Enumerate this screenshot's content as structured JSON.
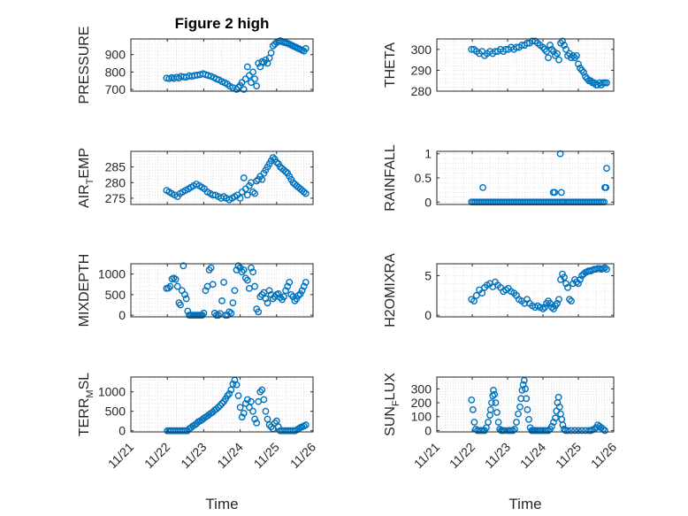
{
  "figure": {
    "title": "Figure 2 high"
  },
  "marker_color": "#0072BD",
  "axis_color": "#262626",
  "grid_color": "#d6d6d6",
  "chart_data": [
    {
      "id": "pressure",
      "type": "scatter",
      "title": "Figure 2 high",
      "ylabel": {
        "main": "PRESSURE"
      },
      "xlabel": "",
      "ylim": [
        690,
        990
      ],
      "yticks": [
        700,
        800,
        900
      ],
      "yticklabels": [
        "700",
        "800",
        "900"
      ],
      "xlim": [
        0,
        5
      ],
      "grid": true,
      "x": [
        0.98,
        1.05,
        1.12,
        1.18,
        1.25,
        1.32,
        1.38,
        1.45,
        1.52,
        1.6,
        1.68,
        1.75,
        1.82,
        1.9,
        1.98,
        2.05,
        2.12,
        2.2,
        2.28,
        2.35,
        2.42,
        2.5,
        2.58,
        2.65,
        2.72,
        2.8,
        2.9,
        2.95,
        3.0,
        3.05,
        3.1,
        3.15,
        3.2,
        3.25,
        3.3,
        3.35,
        3.4,
        3.45,
        3.5,
        3.55,
        3.6,
        3.65,
        3.7,
        3.75,
        3.8,
        3.85,
        3.9,
        3.95,
        4.0,
        4.05,
        4.1,
        4.15,
        4.2,
        4.25,
        4.3,
        4.35,
        4.4,
        4.45,
        4.5,
        4.55,
        4.6,
        4.65,
        4.7,
        4.75,
        4.8
      ],
      "y": [
        765,
        762,
        768,
        763,
        770,
        765,
        775,
        772,
        770,
        778,
        775,
        780,
        782,
        785,
        790,
        785,
        780,
        775,
        768,
        760,
        755,
        745,
        738,
        730,
        718,
        710,
        700,
        712,
        722,
        740,
        700,
        760,
        830,
        780,
        740,
        800,
        760,
        720,
        850,
        830,
        860,
        855,
        870,
        850,
        880,
        910,
        950,
        960,
        970,
        975,
        980,
        975,
        970,
        968,
        965,
        960,
        955,
        950,
        945,
        940,
        935,
        930,
        925,
        920,
        935
      ]
    },
    {
      "id": "theta",
      "type": "scatter",
      "title": "",
      "ylabel": {
        "main": "THETA"
      },
      "xlabel": "",
      "ylim": [
        280,
        305
      ],
      "yticks": [
        280,
        290,
        300
      ],
      "yticklabels": [
        "280",
        "290",
        "300"
      ],
      "xlim": [
        0,
        5
      ],
      "grid": true,
      "x": [
        0.98,
        1.05,
        1.12,
        1.2,
        1.28,
        1.35,
        1.42,
        1.5,
        1.58,
        1.65,
        1.72,
        1.8,
        1.88,
        1.95,
        2.02,
        2.1,
        2.18,
        2.25,
        2.32,
        2.4,
        2.48,
        2.55,
        2.62,
        2.7,
        2.78,
        2.85,
        2.92,
        3.0,
        3.05,
        3.1,
        3.15,
        3.2,
        3.25,
        3.3,
        3.35,
        3.4,
        3.45,
        3.5,
        3.55,
        3.6,
        3.65,
        3.7,
        3.75,
        3.8,
        3.85,
        3.9,
        3.95,
        4.0,
        4.05,
        4.1,
        4.15,
        4.2,
        4.25,
        4.3,
        4.35,
        4.4,
        4.45,
        4.5,
        4.55,
        4.6,
        4.65,
        4.7,
        4.75,
        4.8
      ],
      "y": [
        300,
        300,
        299,
        298,
        299,
        297,
        298,
        299,
        298,
        299,
        299,
        300,
        299,
        300,
        300,
        301,
        300,
        301,
        301,
        302,
        302,
        303,
        303,
        304,
        304,
        303,
        302,
        301,
        300,
        299,
        296,
        302,
        300,
        299,
        297,
        298,
        295,
        303,
        304,
        302,
        300,
        297,
        298,
        296,
        297,
        296,
        297,
        293,
        291,
        290,
        289,
        287,
        286,
        285,
        285,
        284,
        284,
        283,
        283,
        284,
        283,
        284,
        284,
        284
      ]
    },
    {
      "id": "airtemp",
      "type": "scatter",
      "title": "",
      "ylabel": {
        "main": "AIR",
        "sub": "T",
        "tail": "EMP"
      },
      "xlabel": "",
      "ylim": [
        273,
        290
      ],
      "yticks": [
        275,
        280,
        285
      ],
      "yticklabels": [
        "275",
        "280",
        "285"
      ],
      "xlim": [
        0,
        5
      ],
      "grid": true,
      "x": [
        0.98,
        1.05,
        1.12,
        1.2,
        1.28,
        1.35,
        1.42,
        1.5,
        1.58,
        1.65,
        1.72,
        1.8,
        1.88,
        1.95,
        2.02,
        2.1,
        2.18,
        2.25,
        2.32,
        2.4,
        2.48,
        2.55,
        2.62,
        2.7,
        2.78,
        2.85,
        2.92,
        3.0,
        3.05,
        3.1,
        3.15,
        3.2,
        3.25,
        3.3,
        3.35,
        3.4,
        3.45,
        3.5,
        3.55,
        3.6,
        3.65,
        3.7,
        3.75,
        3.8,
        3.85,
        3.9,
        3.95,
        4.0,
        4.05,
        4.1,
        4.15,
        4.2,
        4.25,
        4.3,
        4.35,
        4.4,
        4.45,
        4.5,
        4.55,
        4.6,
        4.65,
        4.7,
        4.75,
        4.8
      ],
      "y": [
        277.5,
        277,
        276.5,
        276,
        275.5,
        276.5,
        277,
        277.5,
        278,
        278.5,
        279,
        279.5,
        279,
        278.5,
        278,
        277,
        276.5,
        276,
        276,
        275.5,
        275,
        275.5,
        275,
        274.5,
        275,
        275.5,
        276,
        275,
        277,
        281.5,
        278,
        276,
        279,
        280,
        277,
        276.5,
        280.5,
        281,
        282,
        281,
        283,
        284,
        285,
        286,
        287,
        288,
        287.5,
        286.5,
        286,
        285,
        284.5,
        284,
        283.5,
        283,
        282,
        281,
        280,
        279.5,
        279,
        278.5,
        278,
        277.5,
        277,
        276.5
      ]
    },
    {
      "id": "rainfall",
      "type": "scatter",
      "title": "",
      "ylabel": {
        "main": "RAINFALL"
      },
      "xlabel": "",
      "ylim": [
        -0.05,
        1.05
      ],
      "yticks": [
        0,
        0.5,
        1
      ],
      "yticklabels": [
        "0",
        "0.5",
        "1"
      ],
      "xlim": [
        0,
        5
      ],
      "grid": true,
      "x": [
        0.98,
        1.03,
        1.08,
        1.13,
        1.18,
        1.23,
        1.28,
        1.33,
        1.38,
        1.43,
        1.48,
        1.53,
        1.58,
        1.63,
        1.68,
        1.73,
        1.78,
        1.83,
        1.88,
        1.93,
        1.98,
        2.03,
        2.08,
        2.13,
        2.18,
        2.23,
        2.28,
        2.33,
        2.38,
        2.43,
        2.48,
        2.53,
        2.58,
        2.63,
        2.68,
        2.73,
        2.78,
        2.83,
        2.88,
        2.93,
        2.98,
        3.03,
        3.08,
        3.13,
        3.18,
        3.23,
        3.28,
        3.33,
        3.38,
        3.43,
        3.48,
        3.53,
        3.58,
        3.63,
        3.68,
        3.73,
        3.78,
        3.83,
        3.88,
        3.93,
        3.98,
        4.03,
        4.08,
        4.13,
        4.18,
        4.23,
        4.28,
        4.33,
        4.38,
        4.43,
        4.48,
        4.53,
        4.58,
        4.63,
        4.68,
        4.73,
        1.3,
        3.29,
        3.33,
        3.49,
        3.52,
        3.54,
        4.75,
        4.78,
        4.8
      ],
      "y": [
        0,
        0,
        0,
        0,
        0,
        0,
        0,
        0,
        0,
        0,
        0,
        0,
        0,
        0,
        0,
        0,
        0,
        0,
        0,
        0,
        0,
        0,
        0,
        0,
        0,
        0,
        0,
        0,
        0,
        0,
        0,
        0,
        0,
        0,
        0,
        0,
        0,
        0,
        0,
        0,
        0,
        0,
        0,
        0,
        0,
        0,
        0,
        0,
        0,
        0,
        0,
        0,
        0,
        0,
        0,
        0,
        0,
        0,
        0,
        0,
        0,
        0,
        0,
        0,
        0,
        0,
        0,
        0,
        0,
        0,
        0,
        0,
        0,
        0,
        0,
        0,
        0.3,
        0.2,
        0.2,
        1.0,
        0.2,
        0,
        0.3,
        0.3,
        0.7
      ]
    },
    {
      "id": "mixdepth",
      "type": "scatter",
      "title": "",
      "ylabel": {
        "main": "MIXDEPTH"
      },
      "xlabel": "",
      "ylim": [
        -40,
        1250
      ],
      "yticks": [
        0,
        500,
        1000
      ],
      "yticklabels": [
        "0",
        "500",
        "1000"
      ],
      "xlim": [
        0,
        5
      ],
      "grid": true,
      "x": [
        0.98,
        1.03,
        1.08,
        1.13,
        1.18,
        1.23,
        1.28,
        1.32,
        1.36,
        1.4,
        1.44,
        1.48,
        1.52,
        1.56,
        1.6,
        1.64,
        1.68,
        1.72,
        1.76,
        1.8,
        1.84,
        1.88,
        1.92,
        1.96,
        2.0,
        2.05,
        2.1,
        2.15,
        2.2,
        2.25,
        2.3,
        2.35,
        2.4,
        2.45,
        2.5,
        2.55,
        2.6,
        2.65,
        2.7,
        2.75,
        2.8,
        2.85,
        2.9,
        2.95,
        3.0,
        3.05,
        3.1,
        3.15,
        3.2,
        3.25,
        3.3,
        3.35,
        3.4,
        3.45,
        3.5,
        3.55,
        3.6,
        3.65,
        3.7,
        3.75,
        3.8,
        3.85,
        3.9,
        3.95,
        4.0,
        4.05,
        4.1,
        4.15,
        4.2,
        4.25,
        4.3,
        4.35,
        4.4,
        4.45,
        4.5,
        4.55,
        4.6,
        4.65,
        4.7,
        4.75,
        4.8
      ],
      "y": [
        650,
        660,
        700,
        880,
        900,
        870,
        700,
        300,
        250,
        600,
        1200,
        500,
        400,
        100,
        0,
        0,
        0,
        0,
        0,
        0,
        0,
        0,
        0,
        0,
        50,
        600,
        700,
        1100,
        1150,
        750,
        50,
        0,
        0,
        40,
        350,
        800,
        0,
        0,
        80,
        50,
        300,
        600,
        1100,
        1200,
        1150,
        1050,
        1100,
        900,
        850,
        650,
        1150,
        1050,
        700,
        150,
        80,
        450,
        500,
        550,
        400,
        300,
        600,
        500,
        400,
        450,
        500,
        520,
        430,
        380,
        450,
        600,
        700,
        800,
        500,
        450,
        350,
        400,
        480,
        520,
        600,
        700,
        800
      ]
    },
    {
      "id": "h2omixra",
      "type": "scatter",
      "title": "",
      "ylabel": {
        "main": "H2OMIXRA"
      },
      "xlabel": "",
      "ylim": [
        -0.2,
        6.5
      ],
      "yticks": [
        0,
        5
      ],
      "yticklabels": [
        "0",
        "5"
      ],
      "xlim": [
        0,
        5
      ],
      "grid": true,
      "x": [
        0.98,
        1.05,
        1.12,
        1.2,
        1.28,
        1.35,
        1.42,
        1.5,
        1.58,
        1.65,
        1.72,
        1.8,
        1.88,
        1.95,
        2.02,
        2.1,
        2.18,
        2.25,
        2.32,
        2.4,
        2.48,
        2.55,
        2.62,
        2.7,
        2.78,
        2.85,
        2.92,
        3.0,
        3.05,
        3.1,
        3.15,
        3.2,
        3.25,
        3.3,
        3.35,
        3.4,
        3.45,
        3.5,
        3.55,
        3.6,
        3.65,
        3.7,
        3.75,
        3.8,
        3.85,
        3.9,
        3.95,
        4.0,
        4.05,
        4.1,
        4.15,
        4.2,
        4.25,
        4.3,
        4.35,
        4.4,
        4.45,
        4.5,
        4.55,
        4.6,
        4.65,
        4.7,
        4.75,
        4.8
      ],
      "y": [
        2.0,
        1.8,
        2.5,
        3.2,
        2.8,
        3.5,
        3.8,
        4.0,
        3.6,
        4.2,
        3.8,
        3.5,
        3.0,
        3.2,
        3.4,
        3.0,
        2.8,
        2.5,
        2.0,
        1.8,
        1.5,
        2.0,
        1.5,
        1.2,
        1.0,
        1.2,
        1.0,
        0.8,
        1.0,
        1.5,
        1.8,
        1.5,
        1.0,
        0.8,
        1.2,
        1.5,
        2.0,
        4.5,
        5.2,
        4.8,
        4.0,
        3.5,
        2.0,
        1.8,
        4.0,
        4.5,
        4.2,
        4.0,
        4.5,
        5.0,
        5.2,
        5.4,
        5.5,
        5.6,
        5.6,
        5.7,
        5.8,
        5.8,
        5.9,
        5.9,
        5.8,
        5.9,
        6.0,
        5.8
      ]
    },
    {
      "id": "terrmsl",
      "type": "scatter",
      "title": "",
      "ylabel": {
        "main": "TERR",
        "sub": "M",
        "tail": "SL"
      },
      "xlabel": "Time",
      "ylim": [
        -30,
        1380
      ],
      "yticks": [
        0,
        500,
        1000
      ],
      "yticklabels": [
        "0",
        "500",
        "1000"
      ],
      "xlim": [
        0,
        5
      ],
      "grid": true,
      "xticklabels": [
        "11/21",
        "11/22",
        "11/23",
        "11/24",
        "11/25",
        "11/26"
      ],
      "x": [
        1.0,
        1.05,
        1.1,
        1.15,
        1.2,
        1.25,
        1.3,
        1.35,
        1.4,
        1.45,
        1.5,
        1.55,
        1.6,
        1.65,
        1.7,
        1.75,
        1.8,
        1.85,
        1.9,
        1.95,
        2.0,
        2.05,
        2.1,
        2.15,
        2.2,
        2.25,
        2.3,
        2.35,
        2.4,
        2.45,
        2.5,
        2.55,
        2.6,
        2.65,
        2.7,
        2.75,
        2.8,
        2.85,
        2.9,
        2.95,
        3.0,
        3.05,
        3.1,
        3.15,
        3.2,
        3.25,
        3.3,
        3.35,
        3.4,
        3.45,
        3.5,
        3.55,
        3.6,
        3.65,
        3.7,
        3.75,
        3.8,
        3.85,
        3.9,
        3.95,
        4.0,
        4.05,
        4.1,
        4.15,
        4.2,
        4.25,
        4.3,
        4.35,
        4.4,
        4.45,
        4.5,
        4.55,
        4.6,
        4.65,
        4.7,
        4.75,
        4.8
      ],
      "y": [
        0,
        0,
        0,
        0,
        0,
        0,
        0,
        0,
        0,
        0,
        0,
        0,
        50,
        80,
        120,
        150,
        180,
        230,
        250,
        280,
        320,
        350,
        380,
        420,
        450,
        480,
        530,
        560,
        600,
        650,
        700,
        750,
        820,
        900,
        950,
        1050,
        1200,
        1300,
        1180,
        900,
        600,
        350,
        450,
        700,
        800,
        600,
        750,
        500,
        300,
        200,
        750,
        1000,
        1050,
        800,
        500,
        300,
        150,
        100,
        50,
        200,
        250,
        100,
        0,
        0,
        0,
        0,
        0,
        0,
        0,
        0,
        0,
        20,
        50,
        80,
        100,
        120,
        150
      ]
    },
    {
      "id": "sunflux",
      "type": "scatter",
      "title": "",
      "ylabel": {
        "main": "SUN",
        "sub": "F",
        "tail": "LUX"
      },
      "xlabel": "Time",
      "ylim": [
        -10,
        385
      ],
      "yticks": [
        0,
        100,
        200,
        300
      ],
      "yticklabels": [
        "0",
        "100",
        "200",
        "300"
      ],
      "xlim": [
        0,
        5
      ],
      "grid": true,
      "xticklabels": [
        "11/21",
        "11/22",
        "11/23",
        "11/24",
        "11/25",
        "11/26"
      ],
      "x": [
        0.98,
        1.02,
        1.06,
        1.1,
        1.15,
        1.2,
        1.25,
        1.3,
        1.35,
        1.4,
        1.45,
        1.5,
        1.52,
        1.55,
        1.58,
        1.6,
        1.63,
        1.66,
        1.7,
        1.74,
        1.78,
        1.82,
        1.86,
        1.9,
        2.0,
        2.05,
        2.1,
        2.15,
        2.2,
        2.25,
        2.3,
        2.35,
        2.38,
        2.41,
        2.44,
        2.47,
        2.5,
        2.53,
        2.56,
        2.6,
        2.64,
        2.68,
        2.72,
        2.76,
        2.8,
        2.85,
        2.9,
        2.95,
        3.0,
        3.05,
        3.1,
        3.15,
        3.2,
        3.25,
        3.3,
        3.35,
        3.38,
        3.41,
        3.44,
        3.47,
        3.5,
        3.53,
        3.56,
        3.6,
        3.64,
        3.7,
        3.8,
        3.9,
        4.0,
        4.1,
        4.2,
        4.3,
        4.35,
        4.4,
        4.45,
        4.5,
        4.55,
        4.6,
        4.65,
        4.7,
        4.75
      ],
      "y": [
        220,
        150,
        60,
        10,
        0,
        0,
        0,
        0,
        0,
        20,
        60,
        110,
        150,
        200,
        250,
        290,
        260,
        200,
        130,
        60,
        10,
        0,
        0,
        0,
        0,
        0,
        0,
        0,
        10,
        60,
        120,
        170,
        230,
        290,
        330,
        360,
        300,
        230,
        150,
        80,
        20,
        0,
        0,
        0,
        0,
        0,
        0,
        0,
        0,
        0,
        0,
        0,
        10,
        30,
        60,
        90,
        140,
        200,
        240,
        170,
        120,
        80,
        40,
        10,
        0,
        0,
        0,
        0,
        0,
        0,
        0,
        0,
        0,
        5,
        10,
        20,
        40,
        30,
        20,
        10,
        0
      ]
    }
  ]
}
